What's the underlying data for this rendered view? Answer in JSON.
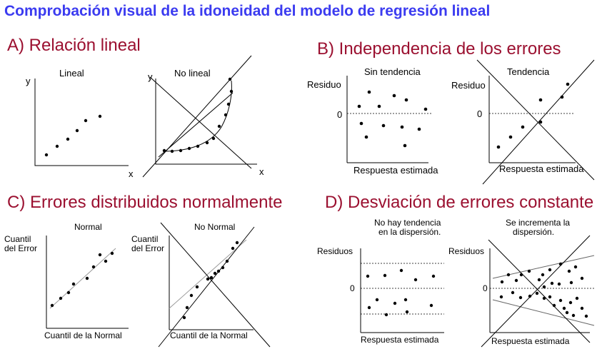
{
  "title": "Comprobación visual de la idoneidad del modelo de regresión lineal",
  "sections": {
    "a": {
      "heading": "A) Relación lineal",
      "left": {
        "caption": "Lineal",
        "ylabel": "y",
        "xlabel": "x"
      },
      "right": {
        "caption": "No lineal",
        "ylabel": "y",
        "xlabel": "x"
      }
    },
    "b": {
      "heading": "B) Independencia de los errores",
      "left": {
        "caption": "Sin tendencia",
        "ylabel": "Residuo",
        "zero": "0",
        "xlabel": "Respuesta estimada"
      },
      "right": {
        "caption": "Tendencia",
        "ylabel": "Residuo",
        "zero": "0",
        "xlabel": "Respuesta estimada"
      }
    },
    "c": {
      "heading": "C) Errores distribuidos normalmente",
      "left": {
        "caption": "Normal",
        "ylabel_1": "Cuantil",
        "ylabel_2": "del Error",
        "xlabel": "Cuantil de la Normal"
      },
      "right": {
        "caption": "No Normal",
        "ylabel_1": "Cuantil",
        "ylabel_2": "del Error",
        "xlabel": "Cuantil de la Normal"
      }
    },
    "d": {
      "heading": "D) Desviación de errores constante",
      "left": {
        "caption_1": "No hay tendencia",
        "caption_2": "en la dispersión.",
        "ylabel": "Residuos",
        "zero": "0",
        "xlabel": "Respuesta estimada"
      },
      "right": {
        "caption_1": "Se incrementa la",
        "caption_2": "dispersión.",
        "ylabel": "Residuos",
        "zero": "0",
        "xlabel": "Respuesta estimada"
      }
    }
  },
  "colors": {
    "title": "#3b3bf0",
    "heading": "#9b1030"
  }
}
